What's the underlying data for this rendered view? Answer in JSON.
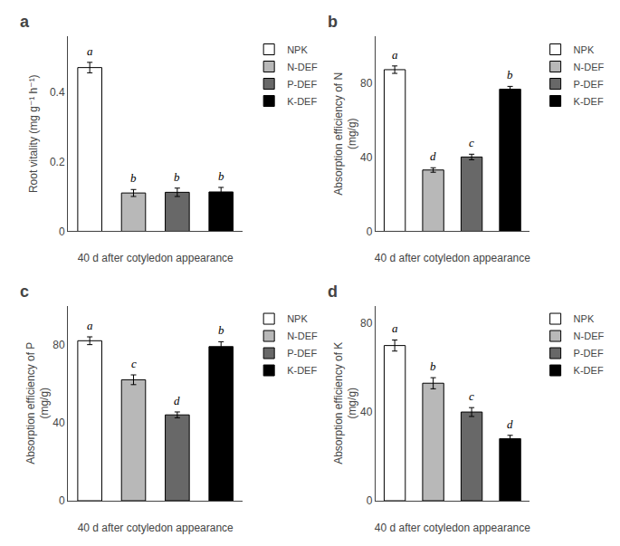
{
  "chart_data": [
    {
      "type": "bar",
      "title": "a",
      "xlabel": "40 d after cotyledon appearance",
      "ylabel": "Root vitality (mg g⁻¹ h⁻¹)",
      "categories": [
        null,
        null,
        null,
        null
      ],
      "series": [
        {
          "name": "NPK",
          "color": "white",
          "values": [
            0.47,
            null,
            null,
            null
          ],
          "errors": [
            0.015,
            null,
            null,
            null
          ]
        },
        {
          "name": "N-DEF",
          "color": "#b8b8b8",
          "values": [
            null,
            0.11,
            null,
            null
          ],
          "errors": [
            null,
            0.01,
            null,
            null
          ]
        },
        {
          "name": "P-DEF",
          "color": "#686868",
          "values": [
            null,
            null,
            0.112,
            null
          ],
          "errors": [
            null,
            null,
            0.012,
            null
          ]
        },
        {
          "name": "K-DEF",
          "color": "black",
          "values": [
            null,
            null,
            null,
            0.113
          ],
          "errors": [
            null,
            null,
            null,
            0.013
          ]
        }
      ],
      "annotations": [
        "a",
        "b",
        "b",
        "b"
      ],
      "ylim": [
        0,
        0.56
      ],
      "yticks": [
        0,
        0.2,
        0.4
      ],
      "grid": false,
      "legend": "right",
      "tick_labels": "y"
    },
    {
      "type": "bar",
      "title": "b",
      "xlabel": "40 d after cotyledon appearance",
      "ylabel": "Absorption efficiency of N\n(mg/g)",
      "categories": [
        null,
        null,
        null,
        null
      ],
      "series": [
        {
          "name": "NPK",
          "color": "white",
          "values": [
            87.0,
            null,
            null,
            null
          ],
          "errors": [
            2.0,
            null,
            null,
            null
          ]
        },
        {
          "name": "N-DEF",
          "color": "#b8b8b8",
          "values": [
            null,
            33.0,
            null,
            null
          ],
          "errors": [
            null,
            1.2,
            null,
            null
          ]
        },
        {
          "name": "P-DEF",
          "color": "#686868",
          "values": [
            null,
            null,
            40.0,
            null
          ],
          "errors": [
            null,
            null,
            1.5,
            null
          ]
        },
        {
          "name": "K-DEF",
          "color": "black",
          "values": [
            null,
            null,
            null,
            76.5
          ],
          "errors": [
            null,
            null,
            null,
            1.5
          ]
        }
      ],
      "annotations": [
        "a",
        "d",
        "c",
        "b"
      ],
      "ylim": [
        0,
        105
      ],
      "yticks": [
        0,
        40,
        80
      ],
      "grid": false,
      "legend": "right",
      "tick_labels": "y"
    },
    {
      "type": "bar",
      "title": "c",
      "xlabel": "40 d after cotyledon appearance",
      "ylabel": "Absorption efficiency of P\n(mg/g)",
      "categories": [
        null,
        null,
        null,
        null
      ],
      "series": [
        {
          "name": "NPK",
          "color": "white",
          "values": [
            82.0,
            null,
            null,
            null
          ],
          "errors": [
            2.0,
            null,
            null,
            null
          ]
        },
        {
          "name": "N-DEF",
          "color": "#b8b8b8",
          "values": [
            null,
            62.0,
            null,
            null
          ],
          "errors": [
            null,
            2.5,
            null,
            null
          ]
        },
        {
          "name": "P-DEF",
          "color": "#686868",
          "values": [
            null,
            null,
            44.0,
            null
          ],
          "errors": [
            null,
            null,
            1.5,
            null
          ]
        },
        {
          "name": "K-DEF",
          "color": "black",
          "values": [
            null,
            null,
            null,
            79.0
          ],
          "errors": [
            null,
            null,
            null,
            2.5
          ]
        }
      ],
      "annotations": [
        "a",
        "c",
        "d",
        "b"
      ],
      "ylim": [
        0,
        100
      ],
      "yticks": [
        0,
        40,
        80
      ],
      "grid": false,
      "legend": "right",
      "tick_labels": "y"
    },
    {
      "type": "bar",
      "title": "d",
      "xlabel": "40 d after cotyledon appearance",
      "ylabel": "Absorption efficiency of K\n(mg/g)",
      "categories": [
        null,
        null,
        null,
        null
      ],
      "series": [
        {
          "name": "NPK",
          "color": "white",
          "values": [
            70.0,
            null,
            null,
            null
          ],
          "errors": [
            2.5,
            null,
            null,
            null
          ]
        },
        {
          "name": "N-DEF",
          "color": "#b8b8b8",
          "values": [
            null,
            53.0,
            null,
            null
          ],
          "errors": [
            null,
            2.5,
            null,
            null
          ]
        },
        {
          "name": "P-DEF",
          "color": "#686868",
          "values": [
            null,
            null,
            40.0,
            null
          ],
          "errors": [
            null,
            null,
            2.0,
            null
          ]
        },
        {
          "name": "K-DEF",
          "color": "black",
          "values": [
            null,
            null,
            null,
            28.0
          ],
          "errors": [
            null,
            null,
            null,
            1.5
          ]
        }
      ],
      "annotations": [
        "a",
        "b",
        "c",
        "d"
      ],
      "ylim": [
        0,
        88
      ],
      "yticks": [
        0,
        40,
        80
      ],
      "grid": false,
      "legend": "right",
      "tick_labels": "y"
    }
  ]
}
